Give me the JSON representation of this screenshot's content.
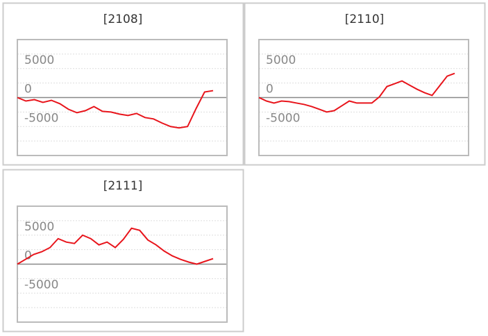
{
  "chart_data": [
    {
      "type": "line",
      "title": "[2108]",
      "color": "#e8141b",
      "categories": [
        null,
        null,
        null,
        null,
        null,
        null,
        null,
        null,
        null,
        null,
        null,
        null,
        null,
        null,
        null,
        null,
        null,
        null,
        null,
        null,
        null,
        null,
        null,
        null
      ],
      "values": [
        0,
        -600,
        -360,
        -830,
        -480,
        -1070,
        -2020,
        -2620,
        -2260,
        -1550,
        -2380,
        -2500,
        -2860,
        -3100,
        -2740,
        -3450,
        -3690,
        -4400,
        -5000,
        -5240,
        -5000,
        -1900,
        950,
        1190
      ],
      "ylim": [
        -10000,
        10000
      ],
      "yticks": [
        -5000,
        0,
        5000
      ],
      "minor_yticks": [
        -7500,
        -2500,
        2500,
        7500
      ],
      "grid": true
    },
    {
      "type": "line",
      "title": "[2110]",
      "color": "#e8141b",
      "categories": [
        null,
        null,
        null,
        null,
        null,
        null,
        null,
        null,
        null,
        null,
        null,
        null,
        null,
        null,
        null,
        null,
        null,
        null,
        null,
        null,
        null,
        null,
        null,
        null,
        null,
        null,
        null
      ],
      "values": [
        0,
        -600,
        -950,
        -600,
        -710,
        -950,
        -1190,
        -1550,
        -2020,
        -2500,
        -2260,
        -1430,
        -600,
        -950,
        -950,
        -950,
        120,
        1900,
        2380,
        2860,
        2140,
        1430,
        830,
        360,
        2020,
        3690,
        4170
      ],
      "ylim": [
        -10000,
        10000
      ],
      "yticks": [
        -5000,
        0,
        5000
      ],
      "minor_yticks": [
        -7500,
        -2500,
        2500,
        7500
      ],
      "grid": true
    },
    {
      "type": "line",
      "title": "[2111]",
      "color": "#e8141b",
      "categories": [
        null,
        null,
        null,
        null,
        null,
        null,
        null,
        null,
        null,
        null,
        null,
        null,
        null,
        null,
        null,
        null,
        null,
        null,
        null,
        null,
        null,
        null,
        null,
        null,
        null
      ],
      "values": [
        0,
        830,
        1670,
        2140,
        2860,
        4400,
        3810,
        3570,
        5000,
        4400,
        3330,
        3810,
        2860,
        4290,
        6190,
        5830,
        4170,
        3330,
        2260,
        1430,
        830,
        360,
        0,
        480,
        950
      ],
      "ylim": [
        -10000,
        10000
      ],
      "yticks": [
        -5000,
        0,
        5000
      ],
      "minor_yticks": [
        -7500,
        -2500,
        2500,
        7500
      ],
      "grid": true
    }
  ]
}
